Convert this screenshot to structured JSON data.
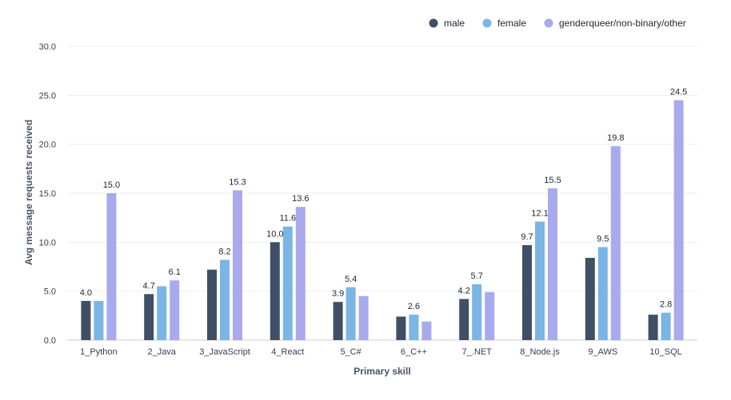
{
  "chart_data": {
    "type": "bar",
    "xlabel": "Primary skill",
    "ylabel": "Avg message requests received",
    "ylim": [
      0,
      30
    ],
    "yticks": [
      "0.0",
      "5.0",
      "10.0",
      "15.0",
      "20.0",
      "25.0",
      "30.0"
    ],
    "grid": true,
    "legend_position": "top-right",
    "categories": [
      "1_Python",
      "2_Java",
      "3_JavaScript",
      "4_React",
      "5_C#",
      "6_C++",
      "7_.NET",
      "8_Node.js",
      "9_AWS",
      "10_SQL"
    ],
    "series": [
      {
        "name": "male",
        "color": "#3f4f66",
        "values": [
          4.0,
          4.7,
          7.2,
          10.0,
          3.9,
          2.4,
          4.2,
          9.7,
          8.4,
          2.6
        ],
        "labels": [
          "4.0",
          "4.7",
          "",
          "10.0",
          "3.9",
          "",
          "4.2",
          "9.7",
          "",
          ""
        ]
      },
      {
        "name": "female",
        "color": "#7ab5e6",
        "values": [
          4.0,
          5.5,
          8.2,
          11.6,
          5.4,
          2.6,
          5.7,
          12.1,
          9.5,
          2.8
        ],
        "labels": [
          "",
          "",
          "8.2",
          "11.6",
          "5.4",
          "2.6",
          "5.7",
          "12.1",
          "9.5",
          "2.8"
        ]
      },
      {
        "name": "genderqueer/non-binary/other",
        "color": "#a9a9ee",
        "values": [
          15.0,
          6.1,
          15.3,
          13.6,
          4.5,
          1.9,
          4.9,
          15.5,
          19.8,
          24.5
        ],
        "labels": [
          "15.0",
          "6.1",
          "15.3",
          "13.6",
          "",
          "",
          "",
          "15.5",
          "19.8",
          "24.5"
        ]
      }
    ]
  }
}
